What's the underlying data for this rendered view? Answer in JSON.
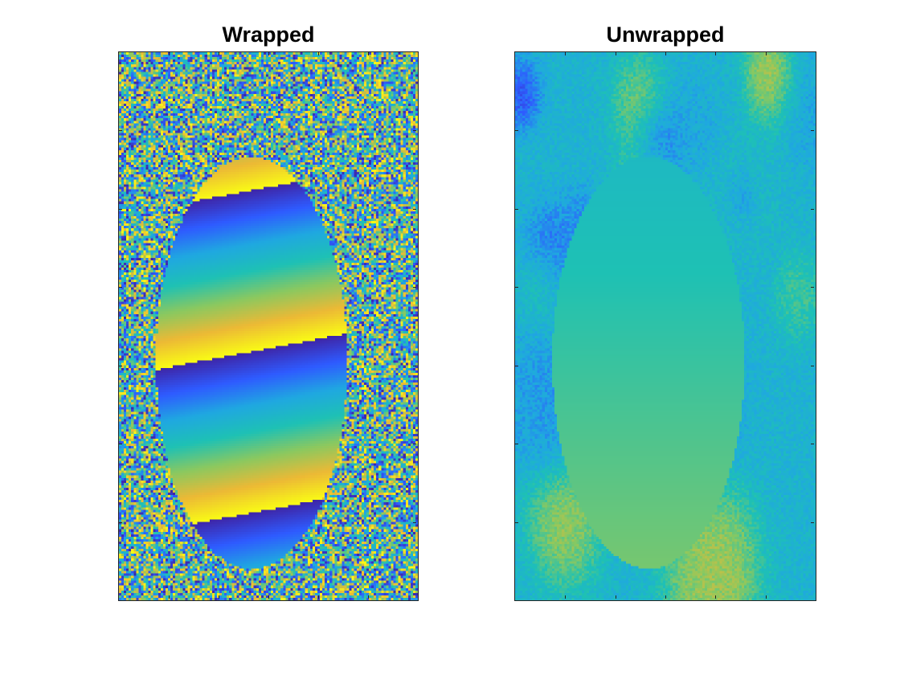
{
  "figure": {
    "panels": [
      {
        "title": "Wrapped"
      },
      {
        "title": "Unwrapped"
      }
    ],
    "colormap": [
      "#3e26a8",
      "#2e5bff",
      "#1fa8e0",
      "#1ec1b4",
      "#8bc85f",
      "#ecb935",
      "#f9fb15"
    ]
  }
}
